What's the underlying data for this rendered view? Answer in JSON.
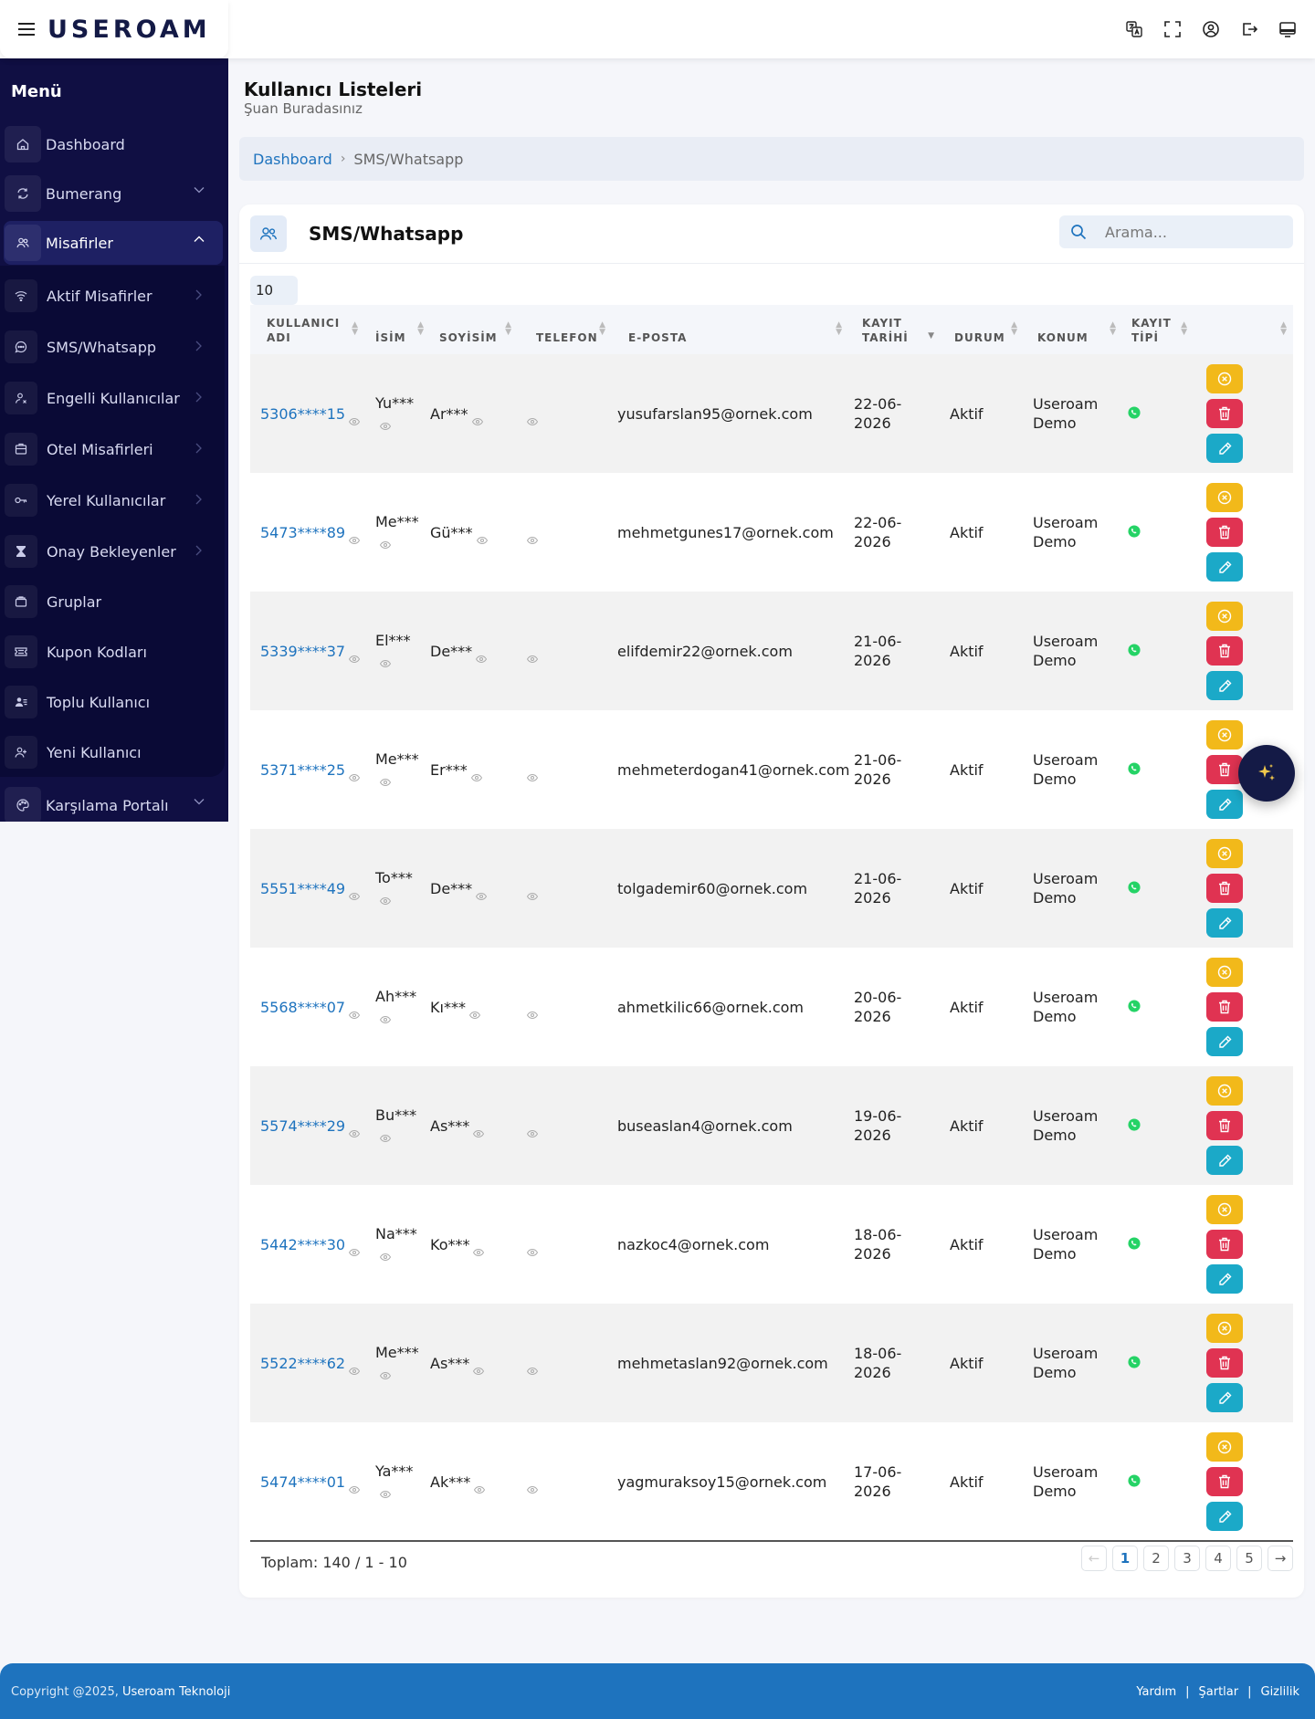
{
  "brand": {
    "logo": "USEROAM"
  },
  "sidebar": {
    "title": "Menü",
    "items": [
      {
        "label": "Dashboard",
        "icon": "home-icon"
      },
      {
        "label": "Bumerang",
        "icon": "refresh-icon"
      },
      {
        "label": "Misafirler",
        "icon": "users-icon"
      },
      {
        "label": "Karşılama Portalı",
        "icon": "palette-icon"
      }
    ],
    "submenu": [
      {
        "label": "Aktif Misafirler",
        "icon": "wifi-icon"
      },
      {
        "label": "SMS/Whatsapp",
        "icon": "chat-icon"
      },
      {
        "label": "Engelli Kullanıcılar",
        "icon": "user-block-icon"
      },
      {
        "label": "Otel Misafirleri",
        "icon": "hotel-icon"
      },
      {
        "label": "Yerel Kullanıcılar",
        "icon": "key-icon"
      },
      {
        "label": "Onay Bekleyenler",
        "icon": "hourglass-icon"
      },
      {
        "label": "Gruplar",
        "icon": "folder-icon"
      },
      {
        "label": "Kupon Kodları",
        "icon": "ticket-icon"
      },
      {
        "label": "Toplu Kullanıcı",
        "icon": "user-list-icon"
      },
      {
        "label": "Yeni Kullanıcı",
        "icon": "user-plus-icon"
      }
    ]
  },
  "header": {
    "title": "Kullanıcı Listeleri",
    "subtitle": "Şuan Buradasınız"
  },
  "breadcrumb": {
    "home": "Dashboard",
    "separator": "›",
    "current": "SMS/Whatsapp"
  },
  "card": {
    "title": "SMS/Whatsapp",
    "search_placeholder": "Arama...",
    "page_size": "10"
  },
  "table": {
    "columns": [
      "KULLANICI ADI",
      "İSİM",
      "SOYİSİM",
      "TELEFON",
      "E-POSTA",
      "KAYIT TARİHİ",
      "DURUM",
      "KONUM",
      "KAYIT TİPİ",
      ""
    ],
    "rows": [
      {
        "user": "5306****15",
        "name": "Yu***",
        "surname": "Ar***",
        "email": "yusufarslan95@ornek.com",
        "date": "22-06-2026",
        "status": "Aktif",
        "location": "Useroam Demo"
      },
      {
        "user": "5473****89",
        "name": "Me***",
        "surname": "Gü***",
        "email": "mehmetgunes17@ornek.com",
        "date": "22-06-2026",
        "status": "Aktif",
        "location": "Useroam Demo"
      },
      {
        "user": "5339****37",
        "name": "El***",
        "surname": "De***",
        "email": "elifdemir22@ornek.com",
        "date": "21-06-2026",
        "status": "Aktif",
        "location": "Useroam Demo"
      },
      {
        "user": "5371****25",
        "name": "Me***",
        "surname": "Er***",
        "email": "mehmeterdogan41@ornek.com",
        "date": "21-06-2026",
        "status": "Aktif",
        "location": "Useroam Demo"
      },
      {
        "user": "5551****49",
        "name": "To***",
        "surname": "De***",
        "email": "tolgademir60@ornek.com",
        "date": "21-06-2026",
        "status": "Aktif",
        "location": "Useroam Demo"
      },
      {
        "user": "5568****07",
        "name": "Ah***",
        "surname": "Kı***",
        "email": "ahmetkilic66@ornek.com",
        "date": "20-06-2026",
        "status": "Aktif",
        "location": "Useroam Demo"
      },
      {
        "user": "5574****29",
        "name": "Bu***",
        "surname": "As***",
        "email": "buseaslan4@ornek.com",
        "date": "19-06-2026",
        "status": "Aktif",
        "location": "Useroam Demo"
      },
      {
        "user": "5442****30",
        "name": "Na***",
        "surname": "Ko***",
        "email": "nazkoc4@ornek.com",
        "date": "18-06-2026",
        "status": "Aktif",
        "location": "Useroam Demo"
      },
      {
        "user": "5522****62",
        "name": "Me***",
        "surname": "As***",
        "email": "mehmetaslan92@ornek.com",
        "date": "18-06-2026",
        "status": "Aktif",
        "location": "Useroam Demo"
      },
      {
        "user": "5474****01",
        "name": "Ya***",
        "surname": "Ak***",
        "email": "yagmuraksoy15@ornek.com",
        "date": "17-06-2026",
        "status": "Aktif",
        "location": "Useroam Demo"
      }
    ],
    "registration_type_icon": "whatsapp-icon"
  },
  "pagination": {
    "total": "Toplam: 140 / 1 - 10",
    "prev": "←",
    "next": "→",
    "pages": [
      "1",
      "2",
      "3",
      "4",
      "5"
    ],
    "current": "1"
  },
  "footer": {
    "copyright": "Copyright @2025,",
    "company": "Useroam Teknoloji",
    "links": [
      "Yardım",
      "Şartlar",
      "Gizlilik"
    ],
    "separator": "|"
  },
  "colors": {
    "sidebar": "#100f43",
    "accent": "#1e73be",
    "warning": "#f2b91a",
    "danger": "#e03352",
    "info": "#1ba9c8",
    "whatsapp": "#25d366"
  }
}
